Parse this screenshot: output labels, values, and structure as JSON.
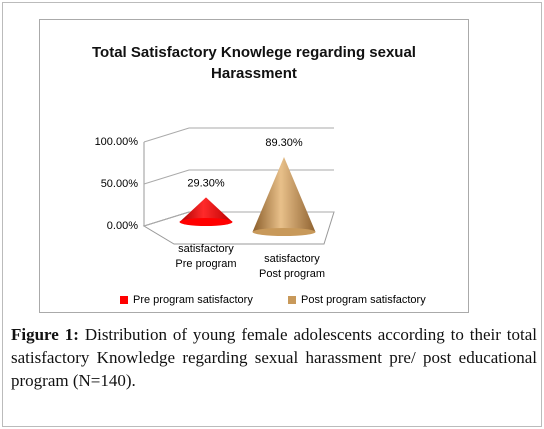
{
  "chart_data": {
    "type": "cone",
    "title": "Total Satisfactory Knowlege regarding sexual Harassment",
    "categories": [
      "satisfactory Pre program",
      "satisfactory Post program"
    ],
    "series": [
      {
        "name": "Pre program satisfactory",
        "color": "#ff0000",
        "values": [
          29.3,
          null
        ],
        "value_labels": [
          "29.30%",
          null
        ]
      },
      {
        "name": "Post program satisfactory",
        "color": "#c8995a",
        "values": [
          null,
          89.3
        ],
        "value_labels": [
          null,
          "89.30%"
        ]
      }
    ],
    "ylim": [
      0,
      100
    ],
    "yticks": [
      {
        "value": 0,
        "label": "0.00%"
      },
      {
        "value": 50,
        "label": "50.00%"
      },
      {
        "value": 100,
        "label": "100.00%"
      }
    ],
    "grid": true,
    "legend": "bottom"
  },
  "caption_label": "Figure 1:",
  "caption_text": "Distribution of young female adolescents according to their total satisfactory Knowledge regarding sexual harassment pre/ post educational program (N=140)."
}
